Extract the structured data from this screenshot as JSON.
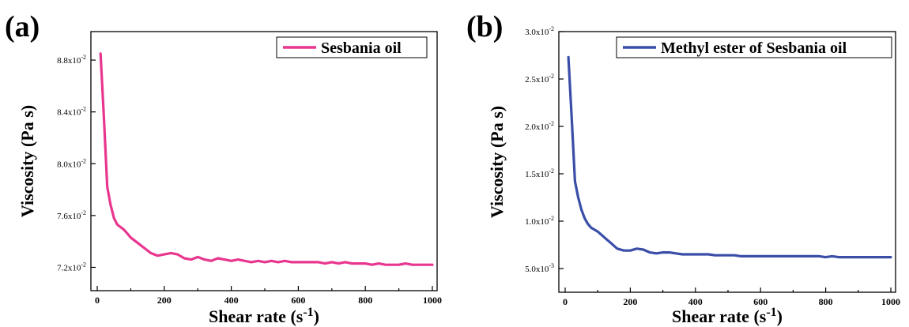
{
  "chart_data": [
    {
      "panel": "(a)",
      "type": "line",
      "xlabel": "Shear rate (s",
      "xlabel_sup": "-1",
      "xlabel_end": ")",
      "ylabel": "Viscosity (Pa s)",
      "xlim": [
        0,
        1000
      ],
      "ylim": [
        0.0702,
        0.0902
      ],
      "xticks": [
        0,
        200,
        400,
        600,
        800,
        1000
      ],
      "yticks": [
        {
          "value": 0.072,
          "mant": "7.2x10",
          "exp": "-2"
        },
        {
          "value": 0.076,
          "mant": "7.6x10",
          "exp": "-2"
        },
        {
          "value": 0.08,
          "mant": "8.0x10",
          "exp": "-2"
        },
        {
          "value": 0.084,
          "mant": "8.4x10",
          "exp": "-2"
        },
        {
          "value": 0.088,
          "mant": "8.8x10",
          "exp": "-2"
        }
      ],
      "legend_position": "top-right",
      "series": [
        {
          "name": "Sesbania oil",
          "color": "#e8368f",
          "x": [
            10,
            20,
            30,
            40,
            50,
            60,
            70,
            80,
            90,
            100,
            120,
            140,
            160,
            180,
            200,
            220,
            240,
            260,
            280,
            300,
            320,
            340,
            360,
            380,
            400,
            420,
            440,
            460,
            480,
            500,
            520,
            540,
            560,
            580,
            600,
            620,
            640,
            660,
            680,
            700,
            720,
            740,
            760,
            780,
            800,
            820,
            840,
            860,
            880,
            900,
            920,
            940,
            960,
            980,
            1000
          ],
          "values": [
            0.0885,
            0.0835,
            0.0782,
            0.0768,
            0.0758,
            0.0753,
            0.0751,
            0.0749,
            0.0746,
            0.0743,
            0.0739,
            0.0735,
            0.0731,
            0.0729,
            0.073,
            0.0731,
            0.073,
            0.0727,
            0.0726,
            0.0728,
            0.0726,
            0.0725,
            0.0727,
            0.0726,
            0.0725,
            0.0726,
            0.0725,
            0.0724,
            0.0725,
            0.0724,
            0.0725,
            0.0724,
            0.0725,
            0.0724,
            0.0724,
            0.0724,
            0.0724,
            0.0724,
            0.0723,
            0.0724,
            0.0723,
            0.0724,
            0.0723,
            0.0723,
            0.0723,
            0.0722,
            0.0723,
            0.0722,
            0.0722,
            0.0722,
            0.0723,
            0.0722,
            0.0722,
            0.0722,
            0.0722
          ]
        }
      ]
    },
    {
      "panel": "(b)",
      "type": "line",
      "xlabel": "Shear rate (s",
      "xlabel_sup": "-1",
      "xlabel_end": ")",
      "ylabel": "Viscosity (Pa s)",
      "xlim": [
        0,
        1000
      ],
      "ylim": [
        0.0025,
        0.03
      ],
      "xticks": [
        0,
        200,
        400,
        600,
        800,
        1000
      ],
      "yticks": [
        {
          "value": 0.005,
          "mant": "5.0x10",
          "exp": "-3"
        },
        {
          "value": 0.01,
          "mant": "1.0x10",
          "exp": "-2"
        },
        {
          "value": 0.015,
          "mant": "1.5x10",
          "exp": "-2"
        },
        {
          "value": 0.02,
          "mant": "2.0x10",
          "exp": "-2"
        },
        {
          "value": 0.025,
          "mant": "2.5x10",
          "exp": "-2"
        },
        {
          "value": 0.03,
          "mant": "3.0x10",
          "exp": "-2"
        }
      ],
      "legend_position": "top-right",
      "series": [
        {
          "name": "Methyl ester of Sesbania oil",
          "color": "#3a4ea8",
          "x": [
            10,
            20,
            30,
            40,
            50,
            60,
            70,
            80,
            90,
            100,
            120,
            140,
            160,
            180,
            200,
            220,
            240,
            260,
            280,
            300,
            320,
            340,
            360,
            380,
            400,
            420,
            440,
            460,
            480,
            500,
            520,
            540,
            560,
            580,
            600,
            620,
            640,
            660,
            680,
            700,
            720,
            740,
            760,
            780,
            800,
            820,
            840,
            860,
            880,
            900,
            920,
            940,
            960,
            980,
            1000
          ],
          "values": [
            0.0273,
            0.021,
            0.0142,
            0.0125,
            0.0112,
            0.0103,
            0.0097,
            0.0093,
            0.0091,
            0.0089,
            0.0083,
            0.0077,
            0.0071,
            0.0069,
            0.0069,
            0.0071,
            0.007,
            0.0067,
            0.0066,
            0.0067,
            0.0067,
            0.0066,
            0.0065,
            0.0065,
            0.0065,
            0.0065,
            0.0065,
            0.0064,
            0.0064,
            0.0064,
            0.0064,
            0.0063,
            0.0063,
            0.0063,
            0.0063,
            0.0063,
            0.0063,
            0.0063,
            0.0063,
            0.0063,
            0.0063,
            0.0063,
            0.0063,
            0.0063,
            0.0062,
            0.0063,
            0.0062,
            0.0062,
            0.0062,
            0.0062,
            0.0062,
            0.0062,
            0.0062,
            0.0062,
            0.0062
          ]
        }
      ]
    }
  ]
}
